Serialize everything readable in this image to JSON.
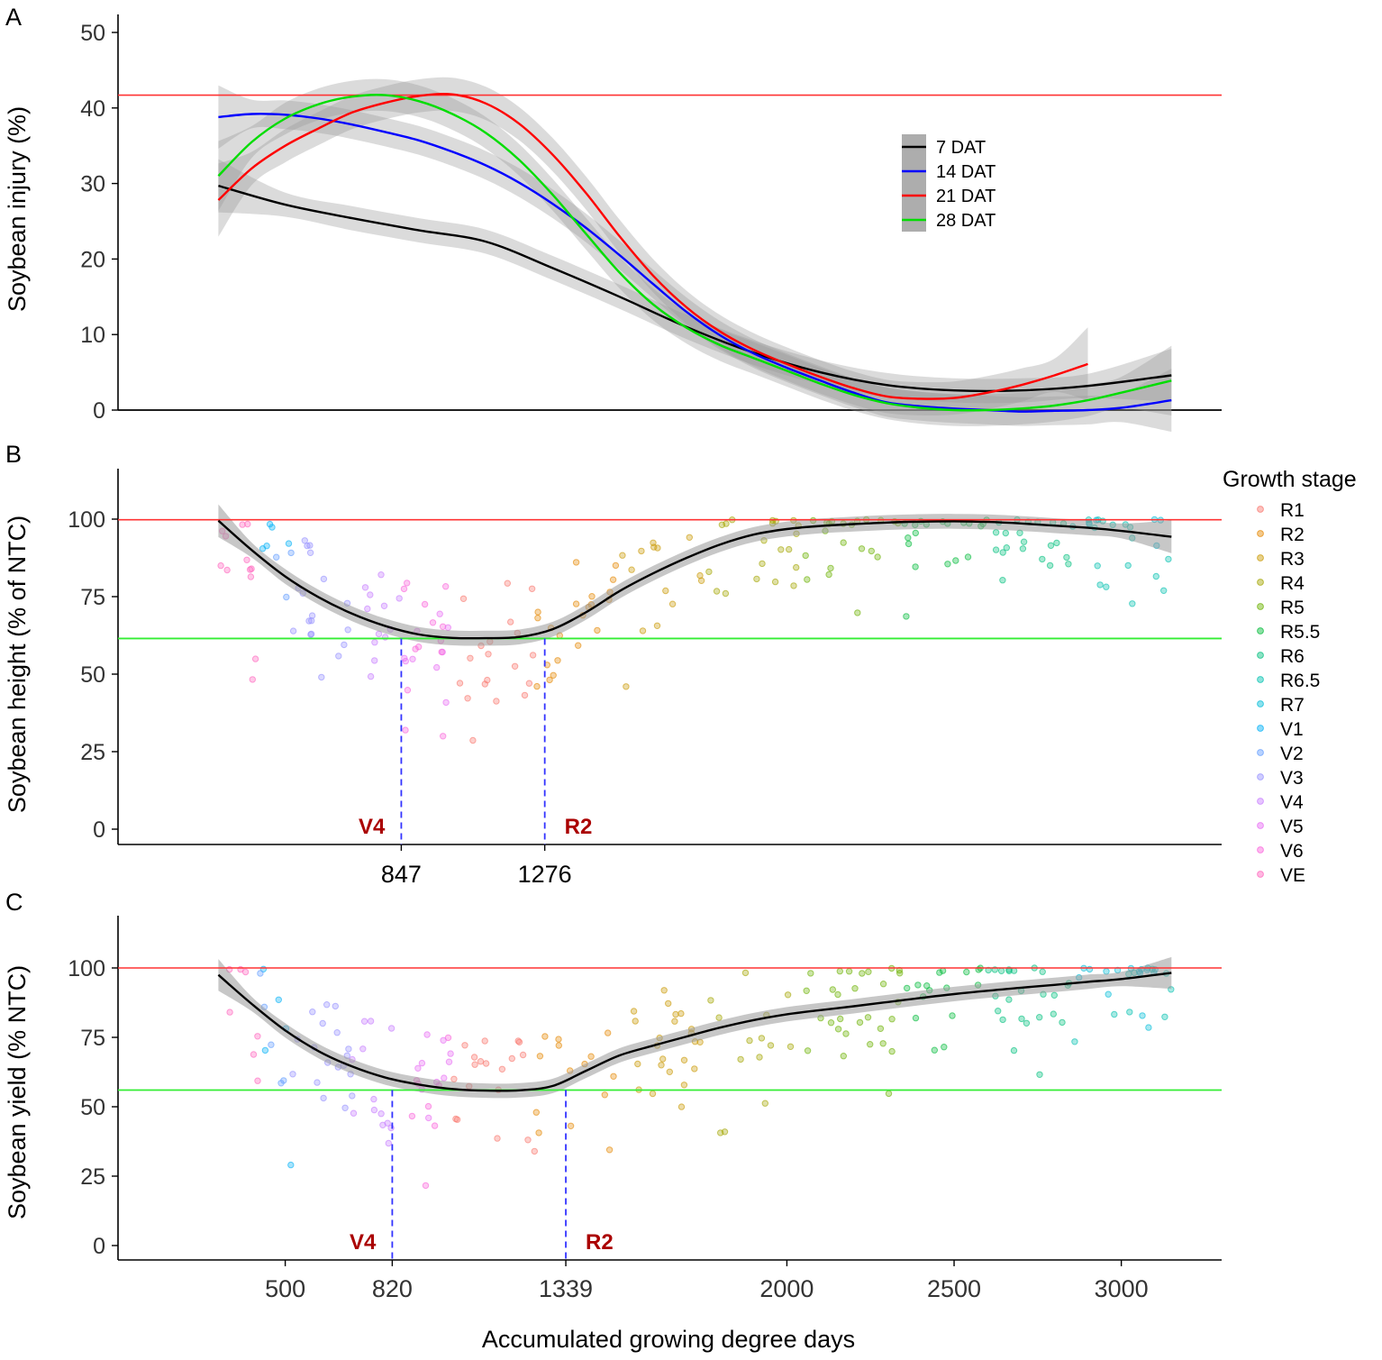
{
  "figure": {
    "x_axis_title": "Accumulated growing degree days",
    "legend_title": "Growth stage",
    "stage_legend": [
      {
        "label": "R1",
        "color": "#F8766D"
      },
      {
        "label": "R2",
        "color": "#E58700"
      },
      {
        "label": "R3",
        "color": "#C99800"
      },
      {
        "label": "R4",
        "color": "#A3A500"
      },
      {
        "label": "R5",
        "color": "#6BB100"
      },
      {
        "label": "R5.5",
        "color": "#00BA38"
      },
      {
        "label": "R6",
        "color": "#00BF7D"
      },
      {
        "label": "R6.5",
        "color": "#00C0AF"
      },
      {
        "label": "R7",
        "color": "#00BCD8"
      },
      {
        "label": "V1",
        "color": "#00B0F6"
      },
      {
        "label": "V2",
        "color": "#619CFF"
      },
      {
        "label": "V3",
        "color": "#9590FF"
      },
      {
        "label": "V4",
        "color": "#C77CFF"
      },
      {
        "label": "V5",
        "color": "#E76BF3"
      },
      {
        "label": "V6",
        "color": "#FA62DB"
      },
      {
        "label": "VE",
        "color": "#FF62BC"
      }
    ]
  },
  "chart_data": [
    {
      "panel": "A",
      "type": "line",
      "ylabel": "Soybean injury (%)",
      "ylim": [
        0,
        52
      ],
      "yticks": [
        0,
        10,
        20,
        30,
        40,
        50
      ],
      "reference_line": 41.7,
      "series": [
        {
          "name": "7 DAT",
          "color": "#000000",
          "x": [
            300,
            500,
            700,
            900,
            1100,
            1300,
            1500,
            1700,
            1900,
            2100,
            2300,
            2500,
            2700,
            2900,
            3150
          ],
          "y": [
            29.7,
            27.2,
            25.4,
            23.8,
            22.3,
            18.8,
            15.0,
            11.0,
            7.6,
            5.0,
            3.3,
            2.6,
            2.6,
            3.2,
            4.6
          ],
          "band": 1.6
        },
        {
          "name": "14 DAT",
          "color": "#0000FF",
          "x": [
            300,
            400,
            500,
            600,
            700,
            800,
            900,
            1000,
            1100,
            1200,
            1300,
            1400,
            1500,
            1600,
            1700,
            1800,
            1900,
            2000,
            2100,
            2200,
            2300,
            2400,
            2500,
            2600,
            2700,
            2800,
            2900,
            3000,
            3150
          ],
          "y": [
            38.8,
            39.2,
            39.1,
            38.6,
            37.8,
            36.8,
            35.7,
            34.2,
            32.4,
            30.1,
            27.3,
            24.1,
            20.5,
            16.7,
            13.0,
            9.9,
            7.5,
            5.6,
            3.9,
            2.3,
            1.0,
            0.5,
            0.2,
            0.0,
            -0.2,
            -0.1,
            0.0,
            0.3,
            1.3
          ],
          "band": 1.9
        },
        {
          "name": "21 DAT",
          "color": "#FF0000",
          "x": [
            300,
            400,
            500,
            600,
            700,
            800,
            900,
            1000,
            1100,
            1200,
            1300,
            1400,
            1500,
            1600,
            1700,
            1800,
            1900,
            2000,
            2100,
            2200,
            2300,
            2400,
            2500,
            2600,
            2700,
            2800,
            2900
          ],
          "y": [
            27.8,
            32.0,
            35.0,
            37.3,
            39.4,
            40.7,
            41.6,
            41.8,
            40.6,
            37.9,
            33.8,
            28.7,
            23.0,
            17.8,
            13.6,
            10.4,
            8.0,
            6.1,
            4.4,
            2.9,
            1.8,
            1.5,
            1.6,
            2.3,
            3.3,
            4.6,
            6.1
          ],
          "band": 2.2
        },
        {
          "name": "28 DAT",
          "color": "#00DD00",
          "x": [
            300,
            400,
            500,
            600,
            700,
            800,
            900,
            1000,
            1100,
            1200,
            1300,
            1400,
            1500,
            1600,
            1700,
            1800,
            1900,
            2000,
            2100,
            2200,
            2300,
            2400,
            2500,
            2600,
            2700,
            2800,
            2900,
            3000,
            3150
          ],
          "y": [
            31.0,
            35.5,
            38.6,
            40.5,
            41.5,
            41.7,
            40.9,
            39.2,
            36.7,
            33.1,
            28.5,
            23.3,
            18.2,
            14.0,
            10.9,
            8.6,
            6.9,
            5.2,
            3.5,
            2.0,
            0.9,
            0.3,
            0.0,
            0.0,
            0.2,
            0.6,
            1.3,
            2.3,
            3.9
          ],
          "band": 2.1
        }
      ]
    },
    {
      "panel": "B",
      "type": "scatter",
      "ylabel": "Soybean height (% of NTC)",
      "ylim": [
        -5,
        115
      ],
      "yticks": [
        0,
        25,
        50,
        75,
        100
      ],
      "reference_lines": {
        "upper": 99.8,
        "lower": 61.5
      },
      "thresholds": [
        {
          "x": 847,
          "label": "847",
          "stage": "V4"
        },
        {
          "x": 1276,
          "label": "1276",
          "stage": "R2"
        }
      ],
      "fit": {
        "x": [
          300,
          400,
          500,
          600,
          700,
          800,
          900,
          1000,
          1100,
          1200,
          1300,
          1400,
          1500,
          1600,
          1700,
          1800,
          1900,
          2000,
          2100,
          2200,
          2300,
          2400,
          2500,
          2600,
          2700,
          2800,
          2900,
          3000,
          3150
        ],
        "y": [
          99.5,
          90.0,
          81.5,
          74.8,
          69.5,
          65.5,
          62.8,
          61.7,
          61.6,
          62.0,
          64.5,
          70.0,
          76.8,
          82.5,
          87.5,
          91.8,
          95.0,
          96.8,
          97.8,
          98.4,
          98.9,
          99.2,
          99.3,
          99.1,
          98.6,
          97.9,
          97.2,
          96.2,
          94.3
        ],
        "band": 2.4
      }
    },
    {
      "panel": "C",
      "type": "scatter",
      "ylabel": "Soybean yield (% NTC)",
      "ylim": [
        -5,
        115
      ],
      "yticks": [
        0,
        25,
        50,
        75,
        100
      ],
      "xticks": [
        500,
        820,
        1339,
        2000,
        2500,
        3000
      ],
      "reference_lines": {
        "upper": 100,
        "lower": 56
      },
      "thresholds": [
        {
          "x": 820,
          "stage": "V4"
        },
        {
          "x": 1339,
          "stage": "R2"
        }
      ],
      "fit": {
        "x": [
          300,
          400,
          500,
          600,
          700,
          800,
          900,
          1000,
          1100,
          1200,
          1300,
          1400,
          1500,
          1600,
          1700,
          1800,
          1900,
          2000,
          2100,
          2200,
          2300,
          2400,
          2500,
          2600,
          2700,
          2800,
          2900,
          3000,
          3150
        ],
        "y": [
          97.5,
          87.0,
          77.5,
          70.0,
          64.5,
          60.5,
          58.0,
          56.4,
          55.8,
          55.9,
          57.5,
          63.0,
          68.5,
          72.0,
          75.3,
          78.5,
          81.2,
          83.3,
          84.8,
          86.2,
          87.7,
          89.2,
          90.6,
          91.8,
          92.9,
          93.9,
          95.0,
          96.0,
          98.2
        ],
        "band": 2.6
      }
    }
  ]
}
